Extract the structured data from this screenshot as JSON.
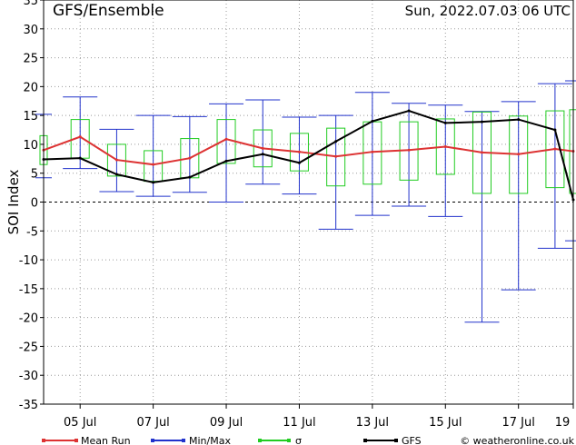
{
  "header": {
    "title": "GFS/Ensemble",
    "run_info": "Sun, 2022.07.03   06 UTC"
  },
  "chart_data": {
    "type": "line",
    "ylabel": "SOI Index",
    "ylim": [
      -35,
      35
    ],
    "yticks": [
      35,
      30,
      25,
      20,
      15,
      10,
      5,
      0,
      -5,
      -10,
      -15,
      -20,
      -25,
      -30,
      -35
    ],
    "xlim": [
      0,
      14.5
    ],
    "xtick_labels": [
      {
        "day": 1,
        "label": "05  Jul"
      },
      {
        "day": 3,
        "label": "07  Jul"
      },
      {
        "day": 5,
        "label": "09  Jul"
      },
      {
        "day": 7,
        "label": "11  Jul"
      },
      {
        "day": 9,
        "label": "13  Jul"
      },
      {
        "day": 11,
        "label": "15  Jul"
      },
      {
        "day": 13,
        "label": "17  Jul"
      },
      {
        "day": 14.5,
        "label": "19"
      }
    ],
    "grid": true,
    "colors": {
      "mean": "#dd3333",
      "minmax": "#2233cc",
      "sigma": "#22cc22",
      "gfs": "#000000"
    },
    "series": [
      {
        "name": "Mean Run",
        "x": [
          0,
          1,
          2,
          3,
          4,
          5,
          6,
          7,
          8,
          9,
          10,
          11,
          12,
          13,
          14,
          14.5
        ],
        "values": [
          9.0,
          11.3,
          7.3,
          6.5,
          7.6,
          10.9,
          9.3,
          8.7,
          7.9,
          8.7,
          9.0,
          9.6,
          8.6,
          8.3,
          9.2,
          8.8
        ]
      },
      {
        "name": "Min/Max",
        "x": [
          0,
          1,
          2,
          3,
          4,
          5,
          6,
          7,
          8,
          9,
          10,
          11,
          12,
          13,
          14,
          14.5
        ],
        "min": [
          4.2,
          5.8,
          1.8,
          1.0,
          1.7,
          0.0,
          3.1,
          1.4,
          -4.7,
          -2.3,
          -0.7,
          -2.5,
          -20.8,
          -15.2,
          -8.0,
          -6.7
        ],
        "max": [
          15.2,
          18.2,
          12.6,
          15.0,
          14.8,
          17.0,
          17.7,
          14.7,
          15.0,
          19.0,
          17.1,
          16.8,
          15.7,
          17.4,
          20.5,
          21.0
        ]
      },
      {
        "name": "σ",
        "x": [
          0,
          1,
          2,
          3,
          4,
          5,
          6,
          7,
          8,
          9,
          10,
          11,
          12,
          13,
          14,
          14.5
        ],
        "low": [
          6.5,
          7.6,
          4.5,
          3.6,
          4.2,
          6.7,
          6.1,
          5.4,
          2.8,
          3.1,
          3.8,
          4.8,
          1.5,
          1.5,
          2.5,
          1.5
        ],
        "high": [
          11.5,
          14.3,
          10.0,
          8.9,
          11.0,
          14.3,
          12.5,
          11.9,
          12.8,
          13.9,
          13.9,
          14.4,
          15.6,
          14.9,
          15.8,
          16.0
        ]
      },
      {
        "name": "GFS",
        "x": [
          0,
          1,
          2,
          3,
          4,
          5,
          6,
          7,
          8,
          9,
          10,
          11,
          12,
          13,
          14,
          14.5
        ],
        "values": [
          7.4,
          7.6,
          4.8,
          3.4,
          4.3,
          7.1,
          8.3,
          6.8,
          10.5,
          14.0,
          15.8,
          13.7,
          13.9,
          14.3,
          12.5,
          0.4
        ]
      }
    ]
  },
  "legend": {
    "mean_label": "Mean Run",
    "minmax_label": "Min/Max",
    "sigma_label": "σ",
    "gfs_label": "GFS",
    "credit": "© weatheronline.co.uk"
  }
}
